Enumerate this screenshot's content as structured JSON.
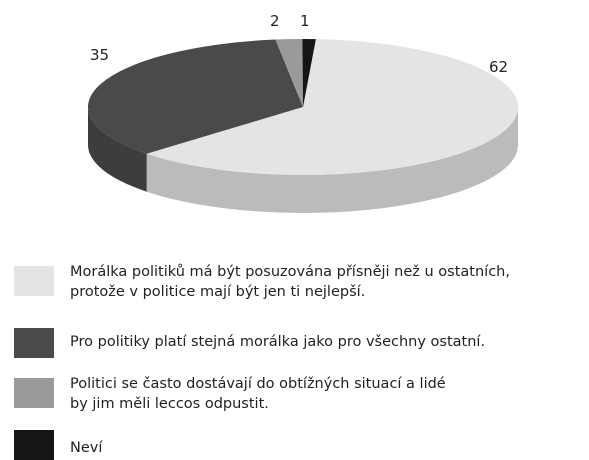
{
  "chart_data": {
    "type": "pie",
    "slices": [
      {
        "label": "Morálka politiků má být posuzována přísněji než u ostatních,\nprotože v politice mají být jen ti nejlepší.",
        "value": 62,
        "value_label": "62",
        "color": "#e4e4e4"
      },
      {
        "label": "Pro politiky platí stejná morálka jako pro všechny ostatní.",
        "value": 35,
        "value_label": "35",
        "color": "#4a4a4a"
      },
      {
        "label": "Politici se často dostávají do obtížných situací a lidé\nby jim měli leccos odpustit.",
        "value": 2,
        "value_label": "2",
        "color": "#9a9a9a"
      },
      {
        "label": "Neví",
        "value": 1,
        "value_label": "1",
        "color": "#151515"
      }
    ],
    "legend_position": "bottom"
  }
}
